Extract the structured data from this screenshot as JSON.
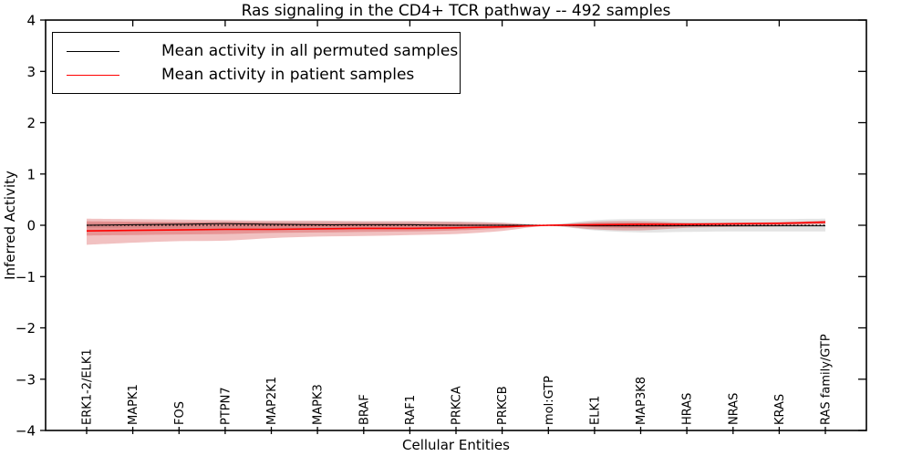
{
  "title": "Ras signaling in the CD4+ TCR pathway -- 492 samples",
  "axes": {
    "xlabel": "Cellular Entities",
    "ylabel": "Inferred Activity"
  },
  "legend": {
    "items": [
      {
        "label": "Mean activity in all permuted samples",
        "color": "#000000"
      },
      {
        "label": "Mean activity in patient samples",
        "color": "#ff0000"
      }
    ],
    "position": "upper left"
  },
  "chart_data": {
    "type": "line",
    "title": "Ras signaling in the CD4+ TCR pathway -- 492 samples",
    "xlabel": "Cellular Entities",
    "ylabel": "Inferred Activity",
    "ylim": [
      -4,
      4
    ],
    "yticks": [
      -4,
      -3,
      -2,
      -1,
      0,
      1,
      2,
      3,
      4
    ],
    "grid": false,
    "legend_position": "upper left",
    "zero_line": {
      "show": true,
      "style": "dotted",
      "color": "#000000",
      "value": 0
    },
    "categories": [
      "ERK1-2/ELK1",
      "MAPK1",
      "FOS",
      "PTPN7",
      "MAP2K1",
      "MAPK3",
      "BRAF",
      "RAF1",
      "PRKCA",
      "PRKCB",
      "mol:GTP",
      "ELK1",
      "MAP3K8",
      "HRAS",
      "NRAS",
      "KRAS",
      "RAS family/GTP"
    ],
    "series": [
      {
        "name": "Mean activity in all permuted samples",
        "color": "#000000",
        "line_width": 1.0,
        "values": [
          0.0,
          0.01,
          0.02,
          0.03,
          0.02,
          0.01,
          0.01,
          0.01,
          0.0,
          0.0,
          0.0,
          -0.01,
          -0.01,
          -0.01,
          -0.01,
          -0.01,
          -0.01
        ],
        "bands": [
          {
            "upper": [
              0.05,
              0.05,
              0.06,
              0.07,
              0.07,
              0.07,
              0.07,
              0.07,
              0.07,
              0.05,
              0.01,
              0.1,
              0.12,
              0.12,
              0.12,
              0.12,
              0.13
            ],
            "lower": [
              -0.05,
              -0.05,
              -0.06,
              -0.07,
              -0.07,
              -0.07,
              -0.07,
              -0.07,
              -0.07,
              -0.05,
              -0.01,
              -0.1,
              -0.14,
              -0.13,
              -0.12,
              -0.12,
              -0.12
            ],
            "fill": "rgba(130,130,130,0.22)"
          }
        ]
      },
      {
        "name": "Mean activity in patient samples",
        "color": "#ff0000",
        "line_width": 1.6,
        "values": [
          -0.11,
          -0.1,
          -0.09,
          -0.08,
          -0.08,
          -0.07,
          -0.06,
          -0.06,
          -0.05,
          -0.03,
          0.0,
          0.01,
          0.02,
          0.02,
          0.03,
          0.04,
          0.06
        ],
        "bands": [
          {
            "upper": [
              0.13,
              0.12,
              0.11,
              0.1,
              0.09,
              0.09,
              0.08,
              0.08,
              0.07,
              0.05,
              0.01,
              0.07,
              0.08,
              0.05,
              0.05,
              0.06,
              0.09
            ],
            "lower": [
              -0.38,
              -0.34,
              -0.31,
              -0.3,
              -0.25,
              -0.22,
              -0.21,
              -0.19,
              -0.17,
              -0.11,
              -0.01,
              -0.08,
              -0.1,
              -0.05,
              -0.03,
              -0.02,
              0.02
            ],
            "fill": "rgba(204,34,34,0.28)"
          },
          {
            "upper": [
              0.08,
              0.07,
              0.06,
              0.06,
              0.05,
              0.04,
              0.04,
              0.03,
              0.03,
              0.02,
              0.005,
              0.04,
              0.05,
              0.04,
              0.04,
              0.05,
              0.08
            ],
            "lower": [
              -0.2,
              -0.19,
              -0.18,
              -0.17,
              -0.15,
              -0.14,
              -0.13,
              -0.12,
              -0.1,
              -0.06,
              -0.005,
              -0.04,
              -0.05,
              -0.02,
              0.0,
              0.01,
              0.04
            ],
            "fill": "rgba(204,34,34,0.28)"
          }
        ]
      }
    ]
  }
}
